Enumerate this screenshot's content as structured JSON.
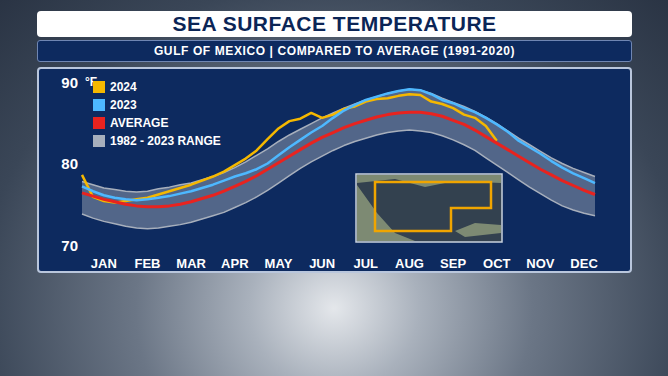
{
  "chart_data": {
    "type": "line",
    "title": "SEA SURFACE TEMPERATURE",
    "subtitle": "GULF OF MEXICO | COMPARED TO AVERAGE (1991-2020)",
    "ylabel": "°F",
    "categories": [
      null,
      null,
      "JAN",
      null,
      null,
      null,
      "FEB",
      null,
      null,
      null,
      "MAR",
      null,
      null,
      null,
      "APR",
      null,
      null,
      null,
      "MAY",
      null,
      null,
      null,
      "JUN",
      null,
      null,
      null,
      "JUL",
      null,
      null,
      null,
      "AUG",
      null,
      null,
      null,
      "SEP",
      null,
      null,
      null,
      "OCT",
      null,
      null,
      null,
      "NOV",
      null,
      null,
      null,
      "DEC",
      null
    ],
    "ylim": [
      70,
      90
    ],
    "yticks": [
      70,
      80,
      90
    ],
    "legend": "top-left",
    "series": [
      {
        "name": "2024",
        "color": "#f5b800",
        "values": [
          78.6,
          75.9,
          75.4,
          75.2,
          75.4,
          75.6,
          75.8,
          76.2,
          76.6,
          77.0,
          77.4,
          77.9,
          78.4,
          79.0,
          79.8,
          80.6,
          81.6,
          83.0,
          84.3,
          85.2,
          85.5,
          86.2,
          85.6,
          86.0,
          86.7,
          87.0,
          87.6,
          87.9,
          88.0,
          88.3,
          88.5,
          88.4,
          87.6,
          87.3,
          86.8,
          86.0,
          85.6,
          84.6,
          82.8,
          null,
          null,
          null,
          null,
          null,
          null,
          null,
          null,
          null
        ]
      },
      {
        "name": "2023",
        "color": "#4db8ff",
        "values": [
          77.2,
          76.6,
          76.1,
          75.8,
          75.6,
          75.5,
          75.6,
          75.8,
          76.0,
          76.3,
          76.6,
          77.0,
          77.4,
          77.9,
          78.4,
          78.8,
          79.3,
          80.0,
          81.0,
          82.0,
          82.9,
          83.8,
          84.6,
          85.6,
          86.5,
          87.2,
          87.8,
          88.2,
          88.6,
          88.9,
          89.1,
          89.0,
          88.5,
          87.8,
          87.4,
          86.8,
          86.3,
          85.6,
          84.8,
          83.9,
          82.8,
          82.0,
          81.2,
          80.3,
          79.5,
          78.8,
          78.2,
          77.6
        ]
      },
      {
        "name": "AVERAGE",
        "color": "#e8231f",
        "values": [
          76.4,
          76.0,
          75.6,
          75.3,
          75.0,
          74.8,
          74.7,
          74.7,
          74.8,
          75.0,
          75.3,
          75.7,
          76.1,
          76.6,
          77.2,
          77.8,
          78.5,
          79.3,
          80.1,
          80.9,
          81.7,
          82.5,
          83.2,
          83.8,
          84.4,
          84.9,
          85.3,
          85.7,
          86.0,
          86.2,
          86.3,
          86.3,
          86.1,
          85.8,
          85.3,
          84.8,
          84.1,
          83.3,
          82.5,
          81.7,
          80.9,
          80.1,
          79.3,
          78.6,
          77.9,
          77.3,
          76.7,
          76.2
        ]
      },
      {
        "name": "1982 - 2023 RANGE",
        "type": "band",
        "color": "#a7afbc",
        "low": [
          73.8,
          73.3,
          72.9,
          72.6,
          72.3,
          72.1,
          72.0,
          72.1,
          72.3,
          72.5,
          72.8,
          73.2,
          73.6,
          74.0,
          74.6,
          75.2,
          75.9,
          76.7,
          77.6,
          78.5,
          79.4,
          80.2,
          80.9,
          81.6,
          82.2,
          82.7,
          83.1,
          83.5,
          83.8,
          84.0,
          84.1,
          84.0,
          83.8,
          83.4,
          82.9,
          82.3,
          81.6,
          80.7,
          79.8,
          78.9,
          78.0,
          77.1,
          76.3,
          75.5,
          74.8,
          74.3,
          73.9,
          73.6
        ],
        "high": [
          77.8,
          77.4,
          77.0,
          76.8,
          76.6,
          76.5,
          76.6,
          76.9,
          77.1,
          77.4,
          77.6,
          78.0,
          78.4,
          78.9,
          79.5,
          80.2,
          81.0,
          81.8,
          82.7,
          83.5,
          84.2,
          84.9,
          85.6,
          86.2,
          86.8,
          87.3,
          87.8,
          88.2,
          88.6,
          88.9,
          89.1,
          89.0,
          88.6,
          88.0,
          87.5,
          87.0,
          86.4,
          85.7,
          84.9,
          84.0,
          83.1,
          82.3,
          81.5,
          80.7,
          80.0,
          79.4,
          78.9,
          78.4
        ]
      }
    ]
  }
}
